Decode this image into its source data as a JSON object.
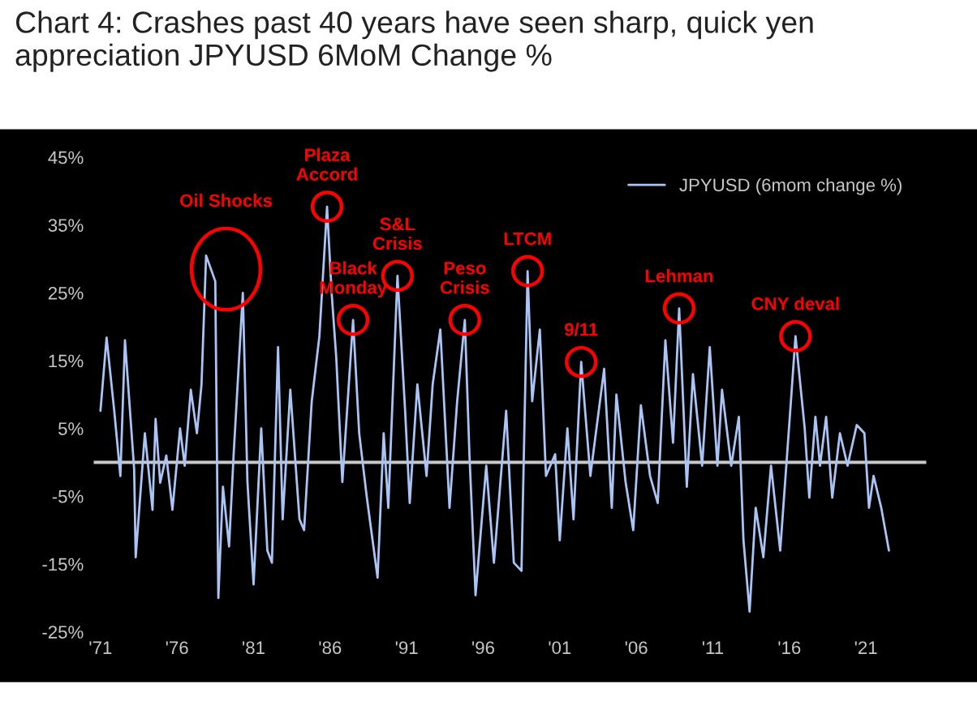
{
  "chart_data": {
    "type": "line",
    "title": "Chart 4: Crashes past 40 years have seen sharp, quick yen appreciation JPYUSD 6MoM Change %",
    "series": [
      {
        "name": "JPYUSD (6mom change %)",
        "color": "#a9c4f5",
        "x": [
          1971.0,
          1971.4,
          1971.9,
          1972.3,
          1972.6,
          1973.2,
          1973.3,
          1973.9,
          1974.4,
          1974.6,
          1974.9,
          1975.3,
          1975.7,
          1976.2,
          1976.5,
          1976.9,
          1977.3,
          1977.6,
          1977.9,
          1978.5,
          1978.7,
          1979.0,
          1979.4,
          1979.7,
          1980.3,
          1980.6,
          1981.0,
          1981.5,
          1981.9,
          1982.2,
          1982.6,
          1982.9,
          1983.4,
          1984.0,
          1984.3,
          1984.8,
          1985.3,
          1985.8,
          1986.1,
          1986.4,
          1986.8,
          1987.5,
          1987.9,
          1988.4,
          1989.1,
          1989.5,
          1989.8,
          1990.4,
          1990.9,
          1991.2,
          1991.7,
          1992.3,
          1992.7,
          1993.2,
          1993.8,
          1994.3,
          1994.8,
          1995.1,
          1995.5,
          1996.2,
          1996.7,
          1997.5,
          1998.0,
          1998.5,
          1998.9,
          1999.2,
          1999.7,
          2000.1,
          2000.7,
          2001.0,
          2001.5,
          2001.9,
          2002.4,
          2003.0,
          2003.9,
          2004.4,
          2004.7,
          2005.3,
          2005.8,
          2006.3,
          2006.9,
          2007.4,
          2007.9,
          2008.4,
          2008.8,
          2009.3,
          2009.7,
          2010.3,
          2010.8,
          2011.3,
          2011.6,
          2012.2,
          2012.7,
          2013.0,
          2013.4,
          2013.8,
          2014.3,
          2014.8,
          2015.4,
          2016.1,
          2016.4,
          2017.0,
          2017.3,
          2017.7,
          2018.0,
          2018.4,
          2018.8,
          2019.3,
          2019.8,
          2020.4,
          2020.9,
          2021.2,
          2021.5,
          2022.0,
          2022.5
        ],
        "values": [
          7.6,
          18.4,
          7.6,
          -2,
          18,
          -1,
          -14,
          4.3,
          -7,
          6.4,
          -3,
          1,
          -7,
          5,
          -0.5,
          10.7,
          4.3,
          11.5,
          30.5,
          26.7,
          -20,
          -3.6,
          -12.4,
          1.2,
          25,
          -2.9,
          -18,
          5,
          -13,
          -14.8,
          17,
          -8.4,
          10.7,
          -8.4,
          -10,
          9,
          18.6,
          37.7,
          25,
          15.5,
          -2.9,
          21,
          4.3,
          -5.2,
          -17,
          4.3,
          -6.7,
          27.5,
          7.6,
          -6,
          11.5,
          -2,
          11.5,
          19.6,
          -6.7,
          9,
          21,
          1.2,
          -19.6,
          -0.5,
          -14.8,
          7.6,
          -14.8,
          -16,
          28.2,
          9,
          19.6,
          -2,
          1.2,
          -11.5,
          5,
          -8.4,
          14.8,
          -2,
          13.8,
          -6.7,
          10,
          -2.9,
          -10,
          8.4,
          -2,
          -6,
          18,
          2.9,
          22.7,
          -3.6,
          13,
          -0.5,
          17,
          -0.5,
          10.7,
          -0.5,
          6.7,
          -11.5,
          -22,
          -6.7,
          -14,
          -0.5,
          -13,
          9,
          18.6,
          5,
          -5.2,
          6.7,
          -0.5,
          6.7,
          -5.2,
          4.3,
          -0.5,
          5.5,
          4.3,
          -6.7,
          -2,
          -6.7,
          -13
        ]
      }
    ],
    "xlim": [
      1970.5,
      2025
    ],
    "xticks": [
      {
        "value": 1971,
        "label": "'71"
      },
      {
        "value": 1976,
        "label": "'76"
      },
      {
        "value": 1981,
        "label": "'81"
      },
      {
        "value": 1986,
        "label": "'86"
      },
      {
        "value": 1991,
        "label": "'91"
      },
      {
        "value": 1996,
        "label": "'96"
      },
      {
        "value": 2001,
        "label": "'01"
      },
      {
        "value": 2006,
        "label": "'06"
      },
      {
        "value": 2011,
        "label": "'11"
      },
      {
        "value": 2016,
        "label": "'16"
      },
      {
        "value": 2021,
        "label": "'21"
      }
    ],
    "ylim": [
      -25,
      45
    ],
    "yticks": [
      {
        "value": -25,
        "label": "-25%"
      },
      {
        "value": -15,
        "label": "-15%"
      },
      {
        "value": -5,
        "label": "-5%"
      },
      {
        "value": 5,
        "label": "5%"
      },
      {
        "value": 15,
        "label": "15%"
      },
      {
        "value": 25,
        "label": "25%"
      },
      {
        "value": 35,
        "label": "35%"
      },
      {
        "value": 45,
        "label": "45%"
      }
    ],
    "ref_lines": [
      {
        "axis": "y",
        "value": 0,
        "color": "#c8c8c8"
      }
    ],
    "annotations": [
      {
        "text": "Oil Shocks",
        "x": 1977.9,
        "y": 30.5
      },
      {
        "text": "Plaza\nAccord",
        "x": 1985.8,
        "y": 37.7
      },
      {
        "text": "Black\nMonday",
        "x": 1987.5,
        "y": 21
      },
      {
        "text": "S&L\nCrisis",
        "x": 1990.4,
        "y": 27.5
      },
      {
        "text": "Peso\nCrisis",
        "x": 1994.8,
        "y": 21
      },
      {
        "text": "LTCM",
        "x": 1998.9,
        "y": 28.2
      },
      {
        "text": "9/11",
        "x": 2002.4,
        "y": 14.8
      },
      {
        "text": "Lehman",
        "x": 2008.8,
        "y": 22.7
      },
      {
        "text": "CNY deval",
        "x": 2016.4,
        "y": 18.6
      }
    ],
    "legend": "top right",
    "grid": false,
    "marker": "none",
    "line_style": "solid"
  }
}
